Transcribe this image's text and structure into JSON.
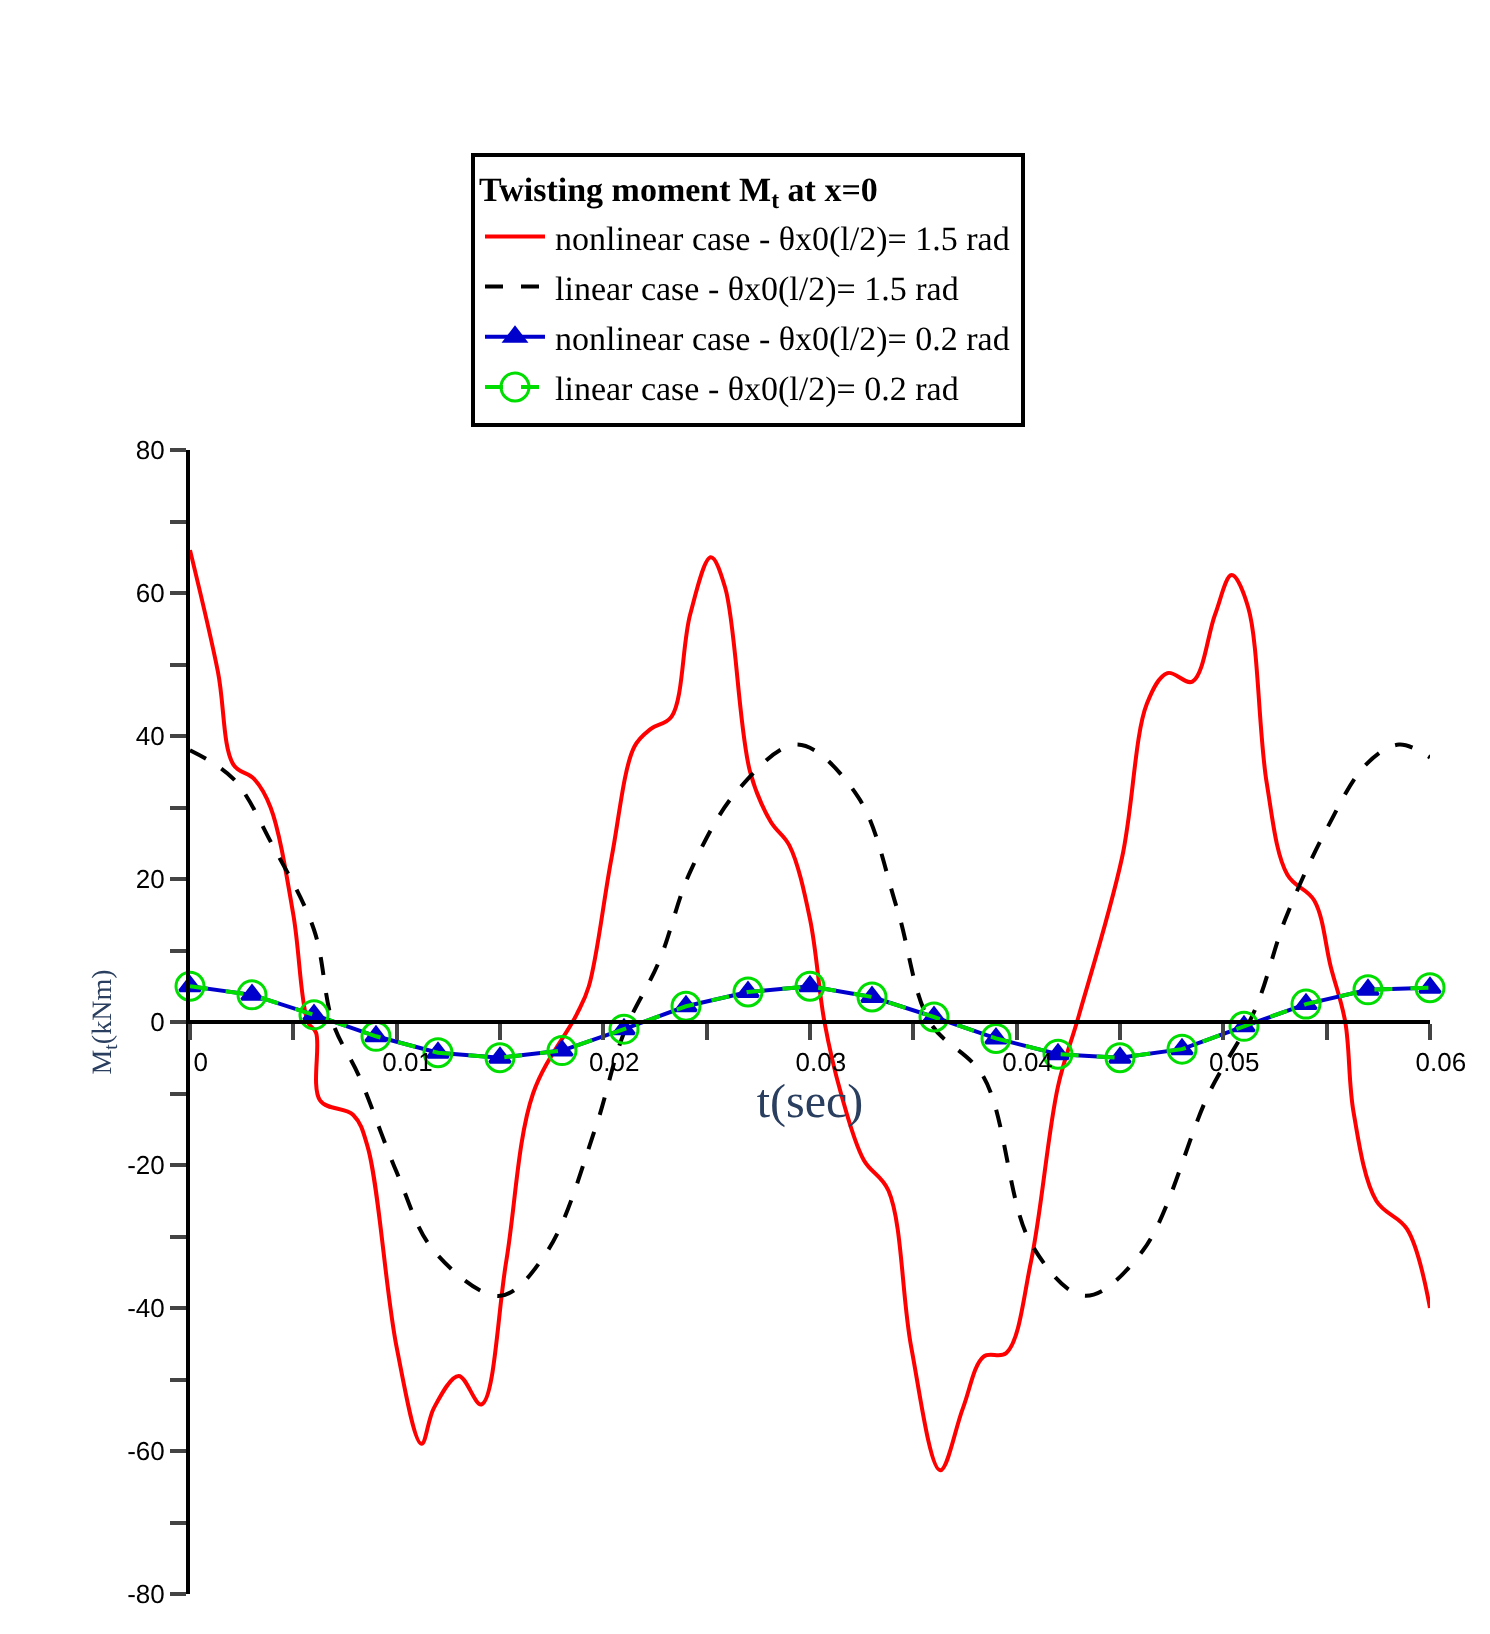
{
  "chart_data": {
    "type": "line",
    "legend_title": "Twisting moment M$_{t}$ at x=0",
    "xlabel": "t(sec)",
    "ylabel": "M$_{t}$(kNm)",
    "xlim": [
      0,
      0.06
    ],
    "xticks": [
      0,
      {
        "value": 0.005,
        "label": null
      },
      0.01,
      {
        "value": 0.015,
        "label": null
      },
      0.02,
      {
        "value": 0.025,
        "label": null
      },
      0.03,
      {
        "value": 0.035,
        "label": null
      },
      0.04,
      {
        "value": 0.045,
        "label": null
      },
      0.05,
      {
        "value": 0.055,
        "label": null
      },
      0.06
    ],
    "ylim": [
      -80,
      80
    ],
    "yticks": [
      -80,
      {
        "value": -70,
        "label": null
      },
      -60,
      {
        "value": -50,
        "label": null
      },
      -40,
      {
        "value": -30,
        "label": null
      },
      -20,
      {
        "value": -10,
        "label": null
      },
      0,
      {
        "value": 10,
        "label": null
      },
      20,
      {
        "value": 30,
        "label": null
      },
      40,
      {
        "value": 50,
        "label": null
      },
      60,
      {
        "value": 70,
        "label": null
      },
      80
    ],
    "legend": "top",
    "series": [
      {
        "name": "nonlinear case - θx0(l/2)= 1.5 rad",
        "color": "#ff0000",
        "line_style": "solid",
        "marker": "none",
        "x": [
          0,
          0.00135,
          0.0021,
          0.0031,
          0.0039,
          0.005,
          0.0057,
          0.0061,
          0.0063,
          0.0079,
          0.0086,
          0.01,
          0.0112,
          0.0118,
          0.013,
          0.0141,
          0.0153,
          0.0166,
          0.0187,
          0.0193,
          0.0204,
          0.0215,
          0.0223,
          0.0233,
          0.0242,
          0.0252,
          0.0259,
          0.0271,
          0.0281,
          0.029,
          0.03,
          0.0307,
          0.0315,
          0.0326,
          0.0338,
          0.0349,
          0.0363,
          0.0374,
          0.0384,
          0.0395,
          0.0407,
          0.042,
          0.043,
          0.0451,
          0.0463,
          0.0473,
          0.0485,
          0.0496,
          0.0504,
          0.0512,
          0.0521,
          0.0531,
          0.0544,
          0.0552,
          0.0559,
          0.0563,
          0.0574,
          0.0589,
          0.06
        ],
        "values": [
          66,
          49,
          36,
          34,
          30,
          15,
          0,
          -1.5,
          -11,
          -13,
          -17.5,
          -45.5,
          -59,
          -54,
          -49.5,
          -53.5,
          -33.5,
          -10,
          1,
          5,
          23,
          38.5,
          41,
          42.7,
          57,
          65,
          60.7,
          35,
          28,
          24.7,
          14.4,
          0,
          -10,
          -19.3,
          -23.6,
          -45.5,
          -62.7,
          -54,
          -46.8,
          -46.3,
          -33.4,
          -9,
          0.8,
          23,
          44.5,
          48.8,
          47.6,
          57,
          62.5,
          58,
          33.4,
          20.6,
          17,
          7.7,
          0,
          -12.6,
          -25,
          -29,
          -40
        ]
      },
      {
        "name": "linear case - θx0(l/2)= 1.5 rad",
        "color": "#000000",
        "line_style": "dashed",
        "marker": "none",
        "x": [
          0,
          0.0021,
          0.004,
          0.006,
          0.0069,
          0.0082,
          0.01,
          0.0118,
          0.015,
          0.0173,
          0.0196,
          0.021,
          0.0227,
          0.0242,
          0.0265,
          0.0294,
          0.0323,
          0.0342,
          0.0358,
          0.0384,
          0.0407,
          0.0433,
          0.0461,
          0.0493,
          0.0515,
          0.053,
          0.055,
          0.0569,
          0.0585,
          0.06
        ],
        "values": [
          38,
          34,
          24.7,
          12.9,
          0,
          -7.7,
          -21,
          -32,
          -38.3,
          -32,
          -15,
          -1.5,
          8.5,
          21,
          32.4,
          38.8,
          31.6,
          16,
          0,
          -7.7,
          -31,
          -38.3,
          -32,
          -10,
          1.5,
          14.4,
          27,
          36,
          38.8,
          37
        ]
      },
      {
        "name": "nonlinear case - θx0(l/2)= 0.2 rad",
        "color": "#0000cc",
        "line_style": "solid",
        "marker": "triangle",
        "x": [
          0,
          0.003,
          0.006,
          0.009,
          0.012,
          0.015,
          0.018,
          0.021,
          0.024,
          0.027,
          0.03,
          0.033,
          0.036,
          0.039,
          0.042,
          0.045,
          0.048,
          0.051,
          0.054,
          0.057,
          0.06
        ],
        "values": [
          5,
          3.8,
          1,
          -2,
          -4.3,
          -5,
          -4,
          -1,
          2.2,
          4.2,
          5,
          3.5,
          0.7,
          -2.3,
          -4.5,
          -5,
          -3.8,
          -0.6,
          2.5,
          4.5,
          4.8
        ]
      },
      {
        "name": "linear case - θx0(l/2)= 0.2 rad",
        "color": "#00dd00",
        "line_style": "dashed",
        "marker": "circle",
        "x": [
          0,
          0.003,
          0.006,
          0.009,
          0.012,
          0.015,
          0.018,
          0.021,
          0.024,
          0.027,
          0.03,
          0.033,
          0.036,
          0.039,
          0.042,
          0.045,
          0.048,
          0.051,
          0.054,
          0.057,
          0.06
        ],
        "values": [
          5,
          3.8,
          1,
          -2,
          -4.3,
          -5,
          -4,
          -1,
          2.2,
          4.2,
          5,
          3.5,
          0.7,
          -2.3,
          -4.5,
          -5,
          -3.8,
          -0.6,
          2.5,
          4.5,
          4.8
        ]
      }
    ]
  }
}
